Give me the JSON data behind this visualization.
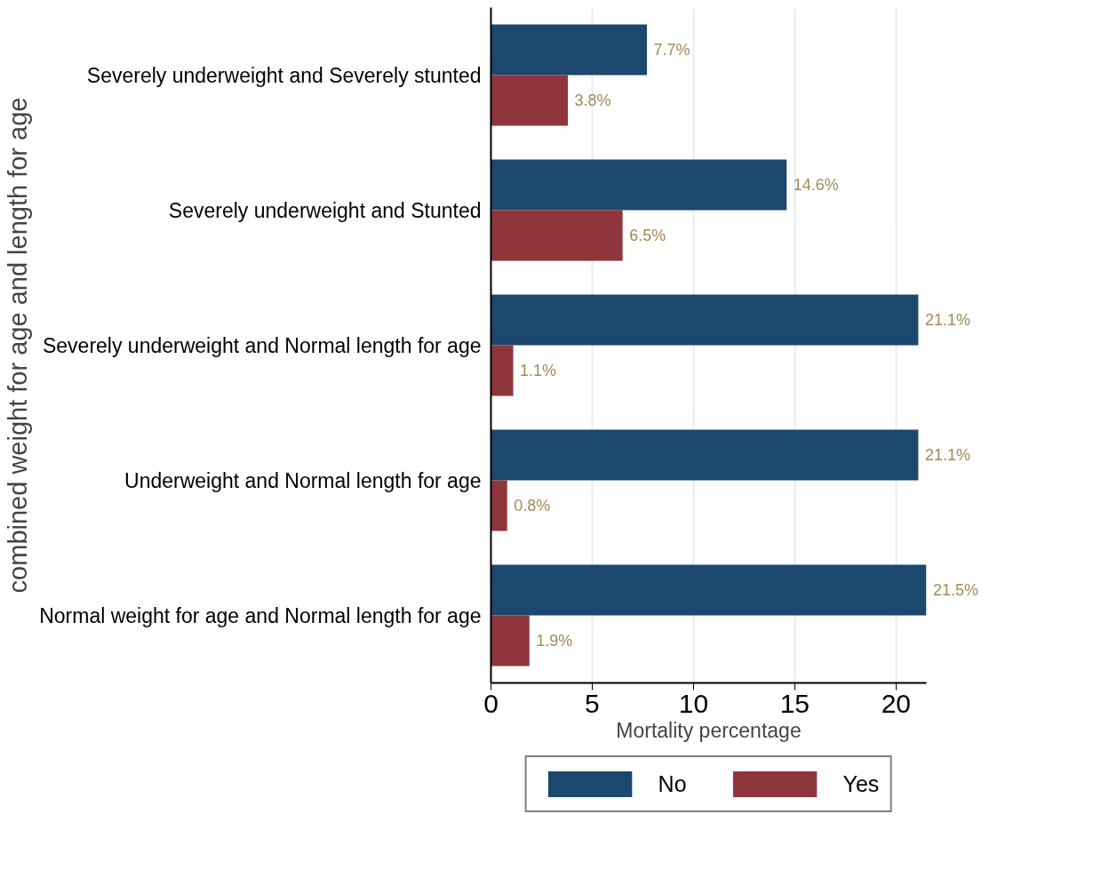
{
  "chart_data": {
    "type": "bar",
    "orientation": "horizontal",
    "xlabel": "Mortality percentage",
    "ylabel": "combined weight for age and length for age",
    "categories": [
      "Severely underweight and Severely stunted",
      "Severely underweight and Stunted",
      "Severely underweight and Normal length for age",
      "Underweight and Normal length for age",
      "Normal weight for age and Normal length for age"
    ],
    "series": [
      {
        "name": "No",
        "color": "#1c476e",
        "values": [
          7.7,
          14.6,
          21.1,
          21.1,
          21.5
        ],
        "value_labels": [
          "7.7%",
          "14.6%",
          "21.1%",
          "21.1%",
          "21.5%"
        ]
      },
      {
        "name": "Yes",
        "color": "#8f353c",
        "values": [
          3.8,
          6.5,
          1.1,
          0.8,
          1.9
        ],
        "value_labels": [
          "3.8%",
          "6.5%",
          "1.1%",
          "0.8%",
          "1.9%"
        ]
      }
    ],
    "xlim": [
      0,
      21.5
    ],
    "xticks": [
      0,
      5,
      10,
      15,
      20
    ],
    "grid": "x",
    "legend": "bottom"
  }
}
